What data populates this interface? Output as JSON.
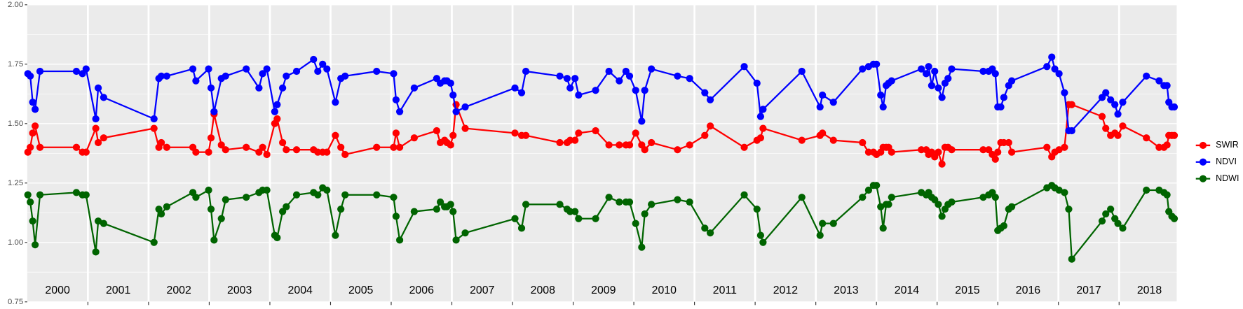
{
  "chart_data": {
    "type": "line",
    "x": [
      2000.01,
      2000.05,
      2000.09,
      2000.13,
      2000.21,
      2000.81,
      2000.91,
      2000.97,
      2001.13,
      2001.17,
      2001.26,
      2002.09,
      2002.17,
      2002.21,
      2002.3,
      2002.73,
      2002.78,
      2002.99,
      2003.03,
      2003.08,
      2003.2,
      2003.27,
      2003.61,
      2003.82,
      2003.88,
      2003.95,
      2004.08,
      2004.12,
      2004.21,
      2004.27,
      2004.44,
      2004.72,
      2004.79,
      2004.87,
      2004.94,
      2005.08,
      2005.17,
      2005.24,
      2005.76,
      2006.04,
      2006.08,
      2006.14,
      2006.38,
      2006.75,
      2006.81,
      2006.88,
      2006.92,
      2006.98,
      2007.02,
      2007.07,
      2007.22,
      2008.04,
      2008.15,
      2008.22,
      2008.78,
      2008.9,
      2008.95,
      2009.03,
      2009.09,
      2009.37,
      2009.59,
      2009.76,
      2009.87,
      2009.93,
      2010.03,
      2010.13,
      2010.18,
      2010.29,
      2010.72,
      2010.92,
      2011.17,
      2011.26,
      2011.82,
      2012.03,
      2012.09,
      2012.13,
      2012.77,
      2013.07,
      2013.11,
      2013.29,
      2013.77,
      2013.87,
      2013.95,
      2014.0,
      2014.07,
      2014.11,
      2014.16,
      2014.2,
      2014.25,
      2014.74,
      2014.82,
      2014.86,
      2014.91,
      2014.96,
      2015.02,
      2015.08,
      2015.13,
      2015.18,
      2015.24,
      2015.76,
      2015.85,
      2015.91,
      2015.96,
      2016.0,
      2016.05,
      2016.1,
      2016.18,
      2016.23,
      2016.81,
      2016.89,
      2016.94,
      2017.01,
      2017.1,
      2017.17,
      2017.22,
      2017.72,
      2017.78,
      2017.86,
      2017.93,
      2017.98,
      2018.06,
      2018.45,
      2018.66,
      2018.74,
      2018.79,
      2018.82,
      2018.87,
      2018.91
    ],
    "series": [
      {
        "name": "SWIR",
        "color": "#ff0000",
        "values": [
          1.38,
          1.4,
          1.46,
          1.49,
          1.4,
          1.4,
          1.38,
          1.38,
          1.48,
          1.42,
          1.44,
          1.48,
          1.4,
          1.42,
          1.4,
          1.4,
          1.38,
          1.38,
          1.44,
          1.54,
          1.41,
          1.39,
          1.4,
          1.38,
          1.4,
          1.37,
          1.5,
          1.52,
          1.42,
          1.39,
          1.39,
          1.39,
          1.38,
          1.38,
          1.38,
          1.45,
          1.4,
          1.37,
          1.4,
          1.4,
          1.46,
          1.4,
          1.44,
          1.47,
          1.42,
          1.43,
          1.42,
          1.41,
          1.45,
          1.58,
          1.48,
          1.46,
          1.45,
          1.45,
          1.42,
          1.42,
          1.43,
          1.43,
          1.46,
          1.47,
          1.41,
          1.41,
          1.41,
          1.41,
          1.46,
          1.41,
          1.39,
          1.42,
          1.39,
          1.41,
          1.45,
          1.49,
          1.4,
          1.43,
          1.44,
          1.48,
          1.43,
          1.45,
          1.46,
          1.43,
          1.42,
          1.38,
          1.38,
          1.37,
          1.38,
          1.4,
          1.4,
          1.4,
          1.38,
          1.39,
          1.39,
          1.37,
          1.38,
          1.36,
          1.38,
          1.33,
          1.4,
          1.4,
          1.39,
          1.39,
          1.39,
          1.37,
          1.35,
          1.38,
          1.42,
          1.42,
          1.42,
          1.38,
          1.4,
          1.36,
          1.38,
          1.39,
          1.4,
          1.58,
          1.58,
          1.53,
          1.48,
          1.45,
          1.46,
          1.45,
          1.49,
          1.44,
          1.4,
          1.4,
          1.41,
          1.45,
          1.45,
          1.45
        ]
      },
      {
        "name": "NDVI",
        "color": "#0000ff",
        "values": [
          1.71,
          1.7,
          1.59,
          1.56,
          1.72,
          1.72,
          1.71,
          1.73,
          1.52,
          1.65,
          1.61,
          1.52,
          1.69,
          1.7,
          1.7,
          1.73,
          1.68,
          1.73,
          1.65,
          1.55,
          1.69,
          1.7,
          1.73,
          1.65,
          1.71,
          1.73,
          1.55,
          1.58,
          1.65,
          1.7,
          1.72,
          1.77,
          1.72,
          1.75,
          1.73,
          1.59,
          1.69,
          1.7,
          1.72,
          1.71,
          1.6,
          1.55,
          1.65,
          1.69,
          1.67,
          1.68,
          1.68,
          1.67,
          1.62,
          1.55,
          1.57,
          1.65,
          1.63,
          1.72,
          1.7,
          1.69,
          1.65,
          1.69,
          1.62,
          1.64,
          1.72,
          1.68,
          1.72,
          1.7,
          1.64,
          1.51,
          1.64,
          1.73,
          1.7,
          1.69,
          1.63,
          1.6,
          1.74,
          1.67,
          1.53,
          1.56,
          1.72,
          1.57,
          1.62,
          1.59,
          1.73,
          1.74,
          1.75,
          1.75,
          1.62,
          1.57,
          1.66,
          1.67,
          1.68,
          1.73,
          1.71,
          1.74,
          1.66,
          1.72,
          1.65,
          1.61,
          1.67,
          1.69,
          1.73,
          1.72,
          1.72,
          1.73,
          1.71,
          1.57,
          1.57,
          1.61,
          1.66,
          1.68,
          1.74,
          1.78,
          1.73,
          1.71,
          1.63,
          1.47,
          1.47,
          1.61,
          1.63,
          1.6,
          1.58,
          1.54,
          1.59,
          1.7,
          1.68,
          1.66,
          1.66,
          1.59,
          1.57,
          1.57
        ]
      },
      {
        "name": "NDWI",
        "color": "#006400",
        "values": [
          1.2,
          1.17,
          1.09,
          0.99,
          1.2,
          1.21,
          1.2,
          1.2,
          0.96,
          1.09,
          1.08,
          1.0,
          1.14,
          1.12,
          1.15,
          1.21,
          1.19,
          1.22,
          1.14,
          1.01,
          1.1,
          1.18,
          1.19,
          1.21,
          1.22,
          1.22,
          1.03,
          1.02,
          1.13,
          1.15,
          1.2,
          1.21,
          1.2,
          1.23,
          1.22,
          1.03,
          1.14,
          1.2,
          1.2,
          1.19,
          1.11,
          1.01,
          1.13,
          1.14,
          1.17,
          1.15,
          1.15,
          1.16,
          1.13,
          1.01,
          1.04,
          1.1,
          1.06,
          1.16,
          1.16,
          1.14,
          1.13,
          1.13,
          1.1,
          1.1,
          1.19,
          1.17,
          1.17,
          1.17,
          1.08,
          0.98,
          1.12,
          1.16,
          1.18,
          1.17,
          1.06,
          1.04,
          1.2,
          1.14,
          1.03,
          1.0,
          1.19,
          1.03,
          1.08,
          1.08,
          1.19,
          1.22,
          1.24,
          1.24,
          1.15,
          1.06,
          1.16,
          1.16,
          1.19,
          1.21,
          1.2,
          1.21,
          1.19,
          1.18,
          1.16,
          1.11,
          1.14,
          1.16,
          1.17,
          1.19,
          1.2,
          1.21,
          1.19,
          1.05,
          1.06,
          1.07,
          1.14,
          1.15,
          1.23,
          1.24,
          1.23,
          1.22,
          1.21,
          1.14,
          0.93,
          1.09,
          1.12,
          1.14,
          1.1,
          1.08,
          1.06,
          1.22,
          1.22,
          1.21,
          1.2,
          1.13,
          1.11,
          1.1
        ]
      }
    ],
    "xlim": [
      2000,
      2018.95
    ],
    "xticks": [
      2001,
      2002,
      2003,
      2004,
      2005,
      2006,
      2007,
      2008,
      2009,
      2010,
      2011,
      2012,
      2013,
      2014,
      2015,
      2016,
      2017,
      2018
    ],
    "year_labels": [
      {
        "value": 2000.5,
        "label": "2000"
      },
      {
        "value": 2001.5,
        "label": "2001"
      },
      {
        "value": 2002.5,
        "label": "2002"
      },
      {
        "value": 2003.5,
        "label": "2003"
      },
      {
        "value": 2004.5,
        "label": "2004"
      },
      {
        "value": 2005.5,
        "label": "2005"
      },
      {
        "value": 2006.5,
        "label": "2006"
      },
      {
        "value": 2007.5,
        "label": "2007"
      },
      {
        "value": 2008.5,
        "label": "2008"
      },
      {
        "value": 2009.5,
        "label": "2009"
      },
      {
        "value": 2010.5,
        "label": "2010"
      },
      {
        "value": 2011.5,
        "label": "2011"
      },
      {
        "value": 2012.5,
        "label": "2012"
      },
      {
        "value": 2013.5,
        "label": "2013"
      },
      {
        "value": 2014.5,
        "label": "2014"
      },
      {
        "value": 2015.5,
        "label": "2015"
      },
      {
        "value": 2016.5,
        "label": "2016"
      },
      {
        "value": 2017.5,
        "label": "2017"
      },
      {
        "value": 2018.5,
        "label": "2018"
      }
    ],
    "ylim": [
      0.75,
      2.0
    ],
    "yticks": [
      {
        "value": 0.75,
        "label": "0.75"
      },
      {
        "value": 1.0,
        "label": "1.00"
      },
      {
        "value": 1.25,
        "label": "1.25"
      },
      {
        "value": 1.5,
        "label": "1.50"
      },
      {
        "value": 1.75,
        "label": "1.75"
      },
      {
        "value": 2.0,
        "label": "2.00"
      }
    ],
    "grid": true,
    "legend": "right"
  }
}
